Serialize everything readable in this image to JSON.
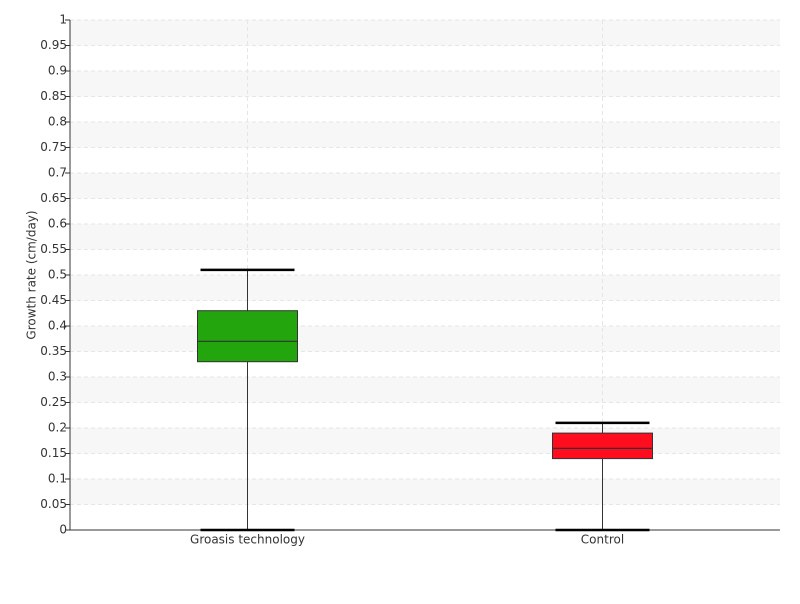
{
  "chart_data": {
    "type": "box",
    "y_label": "Growth rate (cm/day)",
    "categories": [
      "Groasis technology",
      "Control"
    ],
    "boxes": [
      {
        "min": 0,
        "q1": 0.33,
        "median": 0.37,
        "q3": 0.43,
        "max": 0.51,
        "color": "#22a50d"
      },
      {
        "min": 0,
        "q1": 0.14,
        "median": 0.16,
        "q3": 0.19,
        "max": 0.21,
        "color": "#ff0d1e"
      }
    ],
    "ylim": [
      0,
      1
    ],
    "yticks": [
      0,
      0.05,
      0.1,
      0.15,
      0.2,
      0.25,
      0.3,
      0.35,
      0.4,
      0.45,
      0.5,
      0.55,
      0.6,
      0.65,
      0.7,
      0.75,
      0.8,
      0.85,
      0.9,
      0.95,
      1
    ],
    "grid": true
  }
}
